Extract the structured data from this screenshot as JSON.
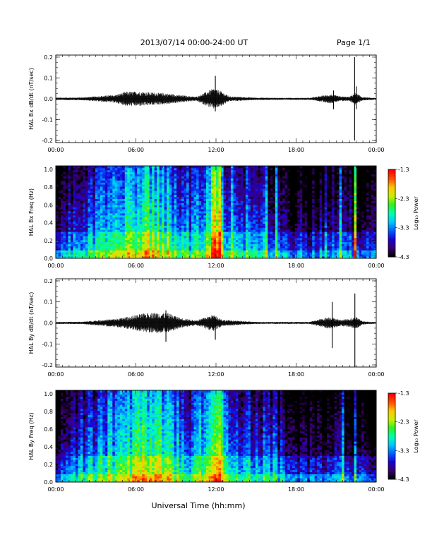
{
  "header": {
    "title": "2013/07/14  00:00-24:00 UT",
    "page": "Page 1/1"
  },
  "xlabel": "Universal Time (hh:mm)",
  "x_ticks": [
    "00:00",
    "06:00",
    "12:00",
    "18:00",
    "00:00"
  ],
  "colorbar": {
    "label": "Log₁₀ Power",
    "ticks": [
      "-1.3",
      "-2.3",
      "-3.3",
      "-4.3"
    ],
    "colors": [
      "#000000",
      "#3a0070",
      "#1a00d8",
      "#0060ff",
      "#00c8ff",
      "#00ffb0",
      "#30f020",
      "#c8f000",
      "#ffc800",
      "#ff5000",
      "#ff0000"
    ]
  },
  "chart_data": [
    {
      "type": "line",
      "ylabel": "HAL Bx dB/dt (nT/sec)",
      "y_ticks": [
        "0.2",
        "0.1",
        "0.0",
        "-0.1",
        "-0.2"
      ],
      "ylim": [
        -0.21,
        0.21
      ],
      "xlim_hours": [
        0,
        24
      ],
      "envelope": [
        {
          "x": 0,
          "y": 0.006
        },
        {
          "x": 2,
          "y": 0.007
        },
        {
          "x": 3,
          "y": 0.012
        },
        {
          "x": 4.5,
          "y": 0.02
        },
        {
          "x": 5.3,
          "y": 0.035
        },
        {
          "x": 6.3,
          "y": 0.035
        },
        {
          "x": 7.5,
          "y": 0.03
        },
        {
          "x": 8.5,
          "y": 0.025
        },
        {
          "x": 9.3,
          "y": 0.018
        },
        {
          "x": 10.5,
          "y": 0.01
        },
        {
          "x": 11.8,
          "y": 0.05
        },
        {
          "x": 12.3,
          "y": 0.04
        },
        {
          "x": 13,
          "y": 0.012
        },
        {
          "x": 15,
          "y": 0.006
        },
        {
          "x": 17,
          "y": 0.005
        },
        {
          "x": 19,
          "y": 0.005
        },
        {
          "x": 20.6,
          "y": 0.022
        },
        {
          "x": 21.3,
          "y": 0.012
        },
        {
          "x": 22,
          "y": 0.01
        },
        {
          "x": 22.4,
          "y": 0.03
        },
        {
          "x": 23,
          "y": 0.008
        },
        {
          "x": 24,
          "y": 0.004
        }
      ],
      "spikes": [
        {
          "x": 11.95,
          "min": -0.06,
          "max": 0.11
        },
        {
          "x": 20.8,
          "min": -0.05,
          "max": 0.04
        },
        {
          "x": 22.38,
          "min": -0.2,
          "max": 0.2
        },
        {
          "x": 22.5,
          "min": -0.05,
          "max": 0.06
        }
      ]
    },
    {
      "type": "heatmap",
      "ylabel": "HAL Bx Freq (Hz)",
      "y_ticks": [
        "1.0",
        "0.8",
        "0.6",
        "0.4",
        "0.2",
        "0.0"
      ],
      "ylim": [
        0,
        1.04
      ],
      "zlim": [
        -4.3,
        -1.3
      ],
      "activity_hours": [
        {
          "x": 0,
          "level": 0.12
        },
        {
          "x": 1.5,
          "level": 0.28
        },
        {
          "x": 2.5,
          "level": 0.3
        },
        {
          "x": 4,
          "level": 0.45
        },
        {
          "x": 5.5,
          "level": 0.55
        },
        {
          "x": 7,
          "level": 0.6
        },
        {
          "x": 8.5,
          "level": 0.5
        },
        {
          "x": 10,
          "level": 0.35
        },
        {
          "x": 11.5,
          "level": 0.55
        },
        {
          "x": 12.3,
          "level": 0.55
        },
        {
          "x": 13,
          "level": 0.3
        },
        {
          "x": 14.5,
          "level": 0.35
        },
        {
          "x": 16,
          "level": 0.25
        },
        {
          "x": 17.5,
          "level": 0.15
        },
        {
          "x": 19,
          "level": 0.12
        },
        {
          "x": 20.5,
          "level": 0.2
        },
        {
          "x": 22,
          "level": 0.2
        },
        {
          "x": 24,
          "level": 0.12
        }
      ],
      "bands": [
        {
          "x0": 11.6,
          "x1": 12.4,
          "boost": 0.25
        },
        {
          "x0": 13.2,
          "x1": 13.5,
          "boost": 0.15
        },
        {
          "x0": 15.6,
          "x1": 15.8,
          "boost": 0.2
        },
        {
          "x0": 16.4,
          "x1": 16.7,
          "boost": 0.25
        },
        {
          "x0": 20.2,
          "x1": 20.3,
          "boost": 0.2
        },
        {
          "x0": 21.3,
          "x1": 21.4,
          "boost": 0.25
        },
        {
          "x0": 22.35,
          "x1": 22.45,
          "boost": 0.55
        }
      ]
    },
    {
      "type": "line",
      "ylabel": "HAL By dB/dt (nT/sec)",
      "y_ticks": [
        "0.2",
        "0.1",
        "0.0",
        "-0.1",
        "-0.2"
      ],
      "ylim": [
        -0.21,
        0.21
      ],
      "xlim_hours": [
        0,
        24
      ],
      "envelope": [
        {
          "x": 0,
          "y": 0.005
        },
        {
          "x": 2,
          "y": 0.006
        },
        {
          "x": 3,
          "y": 0.012
        },
        {
          "x": 4.5,
          "y": 0.02
        },
        {
          "x": 5.5,
          "y": 0.03
        },
        {
          "x": 6.5,
          "y": 0.045
        },
        {
          "x": 7.5,
          "y": 0.05
        },
        {
          "x": 8.5,
          "y": 0.045
        },
        {
          "x": 9.3,
          "y": 0.025
        },
        {
          "x": 10.5,
          "y": 0.012
        },
        {
          "x": 11.8,
          "y": 0.04
        },
        {
          "x": 12.5,
          "y": 0.015
        },
        {
          "x": 15,
          "y": 0.005
        },
        {
          "x": 17,
          "y": 0.005
        },
        {
          "x": 19,
          "y": 0.005
        },
        {
          "x": 20.5,
          "y": 0.03
        },
        {
          "x": 21.3,
          "y": 0.015
        },
        {
          "x": 22,
          "y": 0.02
        },
        {
          "x": 22.5,
          "y": 0.03
        },
        {
          "x": 23,
          "y": 0.008
        },
        {
          "x": 24,
          "y": 0.004
        }
      ],
      "spikes": [
        {
          "x": 8.25,
          "min": -0.09,
          "max": 0.06
        },
        {
          "x": 11.95,
          "min": -0.08,
          "max": 0.03
        },
        {
          "x": 20.7,
          "min": -0.12,
          "max": 0.1
        },
        {
          "x": 22.4,
          "min": -0.21,
          "max": 0.14
        }
      ]
    },
    {
      "type": "heatmap",
      "ylabel": "HAL By Freq (Hz)",
      "y_ticks": [
        "1.0",
        "0.8",
        "0.6",
        "0.4",
        "0.2",
        "0.0"
      ],
      "ylim": [
        0,
        1.04
      ],
      "zlim": [
        -4.3,
        -1.3
      ],
      "activity_hours": [
        {
          "x": 0,
          "level": 0.12
        },
        {
          "x": 1.5,
          "level": 0.3
        },
        {
          "x": 3,
          "level": 0.38
        },
        {
          "x": 4.5,
          "level": 0.5
        },
        {
          "x": 6,
          "level": 0.6
        },
        {
          "x": 7.5,
          "level": 0.65
        },
        {
          "x": 8.5,
          "level": 0.55
        },
        {
          "x": 10,
          "level": 0.35
        },
        {
          "x": 11.5,
          "level": 0.55
        },
        {
          "x": 12.5,
          "level": 0.5
        },
        {
          "x": 13.5,
          "level": 0.35
        },
        {
          "x": 15,
          "level": 0.3
        },
        {
          "x": 16.5,
          "level": 0.25
        },
        {
          "x": 18,
          "level": 0.15
        },
        {
          "x": 19.5,
          "level": 0.1
        },
        {
          "x": 21,
          "level": 0.15
        },
        {
          "x": 22.5,
          "level": 0.15
        },
        {
          "x": 24,
          "level": 0.12
        }
      ],
      "bands": [
        {
          "x0": 11.7,
          "x1": 12.5,
          "boost": 0.2
        },
        {
          "x0": 15.5,
          "x1": 15.7,
          "boost": 0.2
        },
        {
          "x0": 16.3,
          "x1": 16.6,
          "boost": 0.2
        },
        {
          "x0": 20.6,
          "x1": 20.75,
          "boost": 0.2
        },
        {
          "x0": 21.5,
          "x1": 21.6,
          "boost": 0.2
        },
        {
          "x0": 22.35,
          "x1": 22.45,
          "boost": 0.35
        }
      ]
    }
  ]
}
